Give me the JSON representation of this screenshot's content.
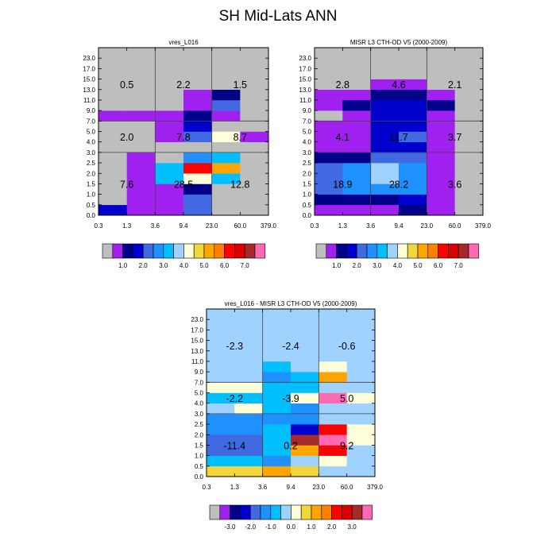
{
  "figure": {
    "title": "SH Mid-Lats ANN"
  },
  "palette": {
    "gray": "#bebebe",
    "p1": "#a020f0",
    "p2": "#00008b",
    "p3": "#0000cd",
    "p4": "#4169e1",
    "p5": "#1e90ff",
    "p6": "#00bfff",
    "p7": "#a0d2ff",
    "p8": "#ffffd9",
    "p9": "#f2d63a",
    "p10": "#ffa500",
    "p11": "#ff7f00",
    "p12": "#ff0000",
    "p13": "#dc0000",
    "p14": "#a52a2a",
    "p15": "#ff69b4"
  },
  "chart_data": [
    {
      "type": "heatmap",
      "name": "model",
      "title": "vres_L016",
      "x_ticks": [
        "0.3",
        "1.3",
        "3.6",
        "9.4",
        "23.0",
        "60.0",
        "379.0"
      ],
      "y_ticks": [
        "0.0",
        "0.5",
        "1.0",
        "1.5",
        "2.0",
        "2.5",
        "3.0",
        "4.0",
        "5.0",
        "7.0",
        "9.0",
        "11.0",
        "13.0",
        "15.0",
        "17.0",
        "23.0"
      ],
      "grid": "rows bottom-to-top (16 levels), columns left-to-right (6 bins); values are color-class indices 0-15",
      "cells": [
        [
          3,
          1,
          1,
          4,
          0,
          0
        ],
        [
          0,
          1,
          1,
          4,
          0,
          0
        ],
        [
          0,
          1,
          1,
          2,
          0,
          0
        ],
        [
          0,
          1,
          6,
          8,
          6,
          0
        ],
        [
          0,
          1,
          6,
          12,
          10,
          0
        ],
        [
          0,
          1,
          0,
          5,
          6,
          0
        ],
        [
          0,
          0,
          0,
          0,
          0,
          0
        ],
        [
          0,
          0,
          1,
          4,
          8,
          1
        ],
        [
          0,
          0,
          1,
          3,
          0,
          0
        ],
        [
          1,
          1,
          1,
          2,
          1,
          0
        ],
        [
          0,
          0,
          0,
          1,
          4,
          0
        ],
        [
          0,
          0,
          0,
          1,
          2,
          0
        ],
        [
          0,
          0,
          0,
          0,
          0,
          0
        ],
        [
          0,
          0,
          0,
          0,
          0,
          0
        ],
        [
          0,
          0,
          0,
          0,
          0,
          0
        ],
        [
          0,
          0,
          0,
          0,
          0,
          0
        ]
      ],
      "labels": [
        "7.6",
        "28.5",
        "12.8",
        "2.0",
        "7.8",
        "8.7",
        "0.5",
        "2.2",
        "1.5"
      ]
    },
    {
      "type": "heatmap",
      "name": "obs",
      "title": "MISR L3 CTH-OD V5 (2000-2009)",
      "x_ticks": [
        "0.3",
        "1.3",
        "3.6",
        "9.4",
        "23.0",
        "60.0",
        "379.0"
      ],
      "y_ticks": [
        "0.0",
        "0.5",
        "1.0",
        "1.5",
        "2.0",
        "2.5",
        "3.0",
        "4.0",
        "5.0",
        "7.0",
        "9.0",
        "11.0",
        "13.0",
        "15.0",
        "17.0",
        "23.0"
      ],
      "grid": "rows bottom-to-top (16 levels), columns left-to-right (6 bins); values are color-class indices 0-15",
      "cells": [
        [
          1,
          1,
          1,
          2,
          1,
          0
        ],
        [
          2,
          2,
          2,
          3,
          1,
          0
        ],
        [
          4,
          5,
          5,
          5,
          1,
          0
        ],
        [
          4,
          5,
          7,
          5,
          1,
          0
        ],
        [
          4,
          5,
          7,
          5,
          1,
          0
        ],
        [
          2,
          2,
          4,
          4,
          1,
          0
        ],
        [
          1,
          1,
          3,
          3,
          1,
          0
        ],
        [
          1,
          1,
          3,
          4,
          1,
          0
        ],
        [
          1,
          1,
          3,
          3,
          1,
          0
        ],
        [
          0,
          1,
          3,
          3,
          1,
          0
        ],
        [
          1,
          2,
          3,
          3,
          2,
          0
        ],
        [
          1,
          1,
          2,
          2,
          1,
          0
        ],
        [
          0,
          0,
          1,
          1,
          0,
          0
        ],
        [
          0,
          0,
          0,
          0,
          0,
          0
        ],
        [
          0,
          0,
          0,
          0,
          0,
          0
        ],
        [
          0,
          0,
          0,
          0,
          0,
          0
        ]
      ],
      "labels": [
        "18.9",
        "28.2",
        "3.6",
        "4.1",
        "11.7",
        "3.7",
        "2.8",
        "4.6",
        "2.1"
      ]
    },
    {
      "type": "heatmap",
      "name": "diff",
      "title": "vres_L016 - MISR L3 CTH-OD V5 (2000-2009)",
      "x_ticks": [
        "0.3",
        "1.3",
        "3.6",
        "9.4",
        "23.0",
        "60.0",
        "379.0"
      ],
      "y_ticks": [
        "0.0",
        "0.5",
        "1.0",
        "1.5",
        "2.0",
        "2.5",
        "3.0",
        "4.0",
        "5.0",
        "7.0",
        "9.0",
        "11.0",
        "13.0",
        "15.0",
        "17.0",
        "23.0"
      ],
      "grid": "rows bottom-to-top (16 levels), columns left-to-right (6 bins); values are color-class indices 0-15",
      "cells": [
        [
          9,
          9,
          10,
          9,
          7,
          7
        ],
        [
          6,
          6,
          5,
          7,
          8,
          7
        ],
        [
          4,
          4,
          6,
          10,
          12,
          7
        ],
        [
          4,
          4,
          6,
          14,
          15,
          8
        ],
        [
          5,
          5,
          6,
          3,
          12,
          8
        ],
        [
          5,
          5,
          5,
          5,
          7,
          7
        ],
        [
          7,
          8,
          6,
          5,
          7,
          7
        ],
        [
          6,
          6,
          6,
          8,
          15,
          8
        ],
        [
          8,
          8,
          6,
          6,
          7,
          7
        ],
        [
          7,
          7,
          5,
          6,
          10,
          7
        ],
        [
          7,
          7,
          6,
          7,
          8,
          7
        ],
        [
          7,
          7,
          7,
          7,
          7,
          7
        ],
        [
          7,
          7,
          7,
          7,
          7,
          7
        ],
        [
          7,
          7,
          7,
          7,
          7,
          7
        ],
        [
          7,
          7,
          7,
          7,
          7,
          7
        ],
        [
          7,
          7,
          7,
          7,
          7,
          7
        ]
      ],
      "labels": [
        "-11.4",
        "0.2",
        "9.2",
        "-2.2",
        "-3.9",
        "5.0",
        "-2.3",
        "-2.4",
        "-0.6"
      ]
    }
  ],
  "colorbars": {
    "abs": {
      "labels": [
        "1.0",
        "2.0",
        "3.0",
        "4.0",
        "5.0",
        "6.0",
        "7.0"
      ]
    },
    "diff": {
      "labels": [
        "-3.0",
        "-2.0",
        "-1.0",
        "0.0",
        "1.0",
        "2.0",
        "3.0"
      ]
    }
  }
}
